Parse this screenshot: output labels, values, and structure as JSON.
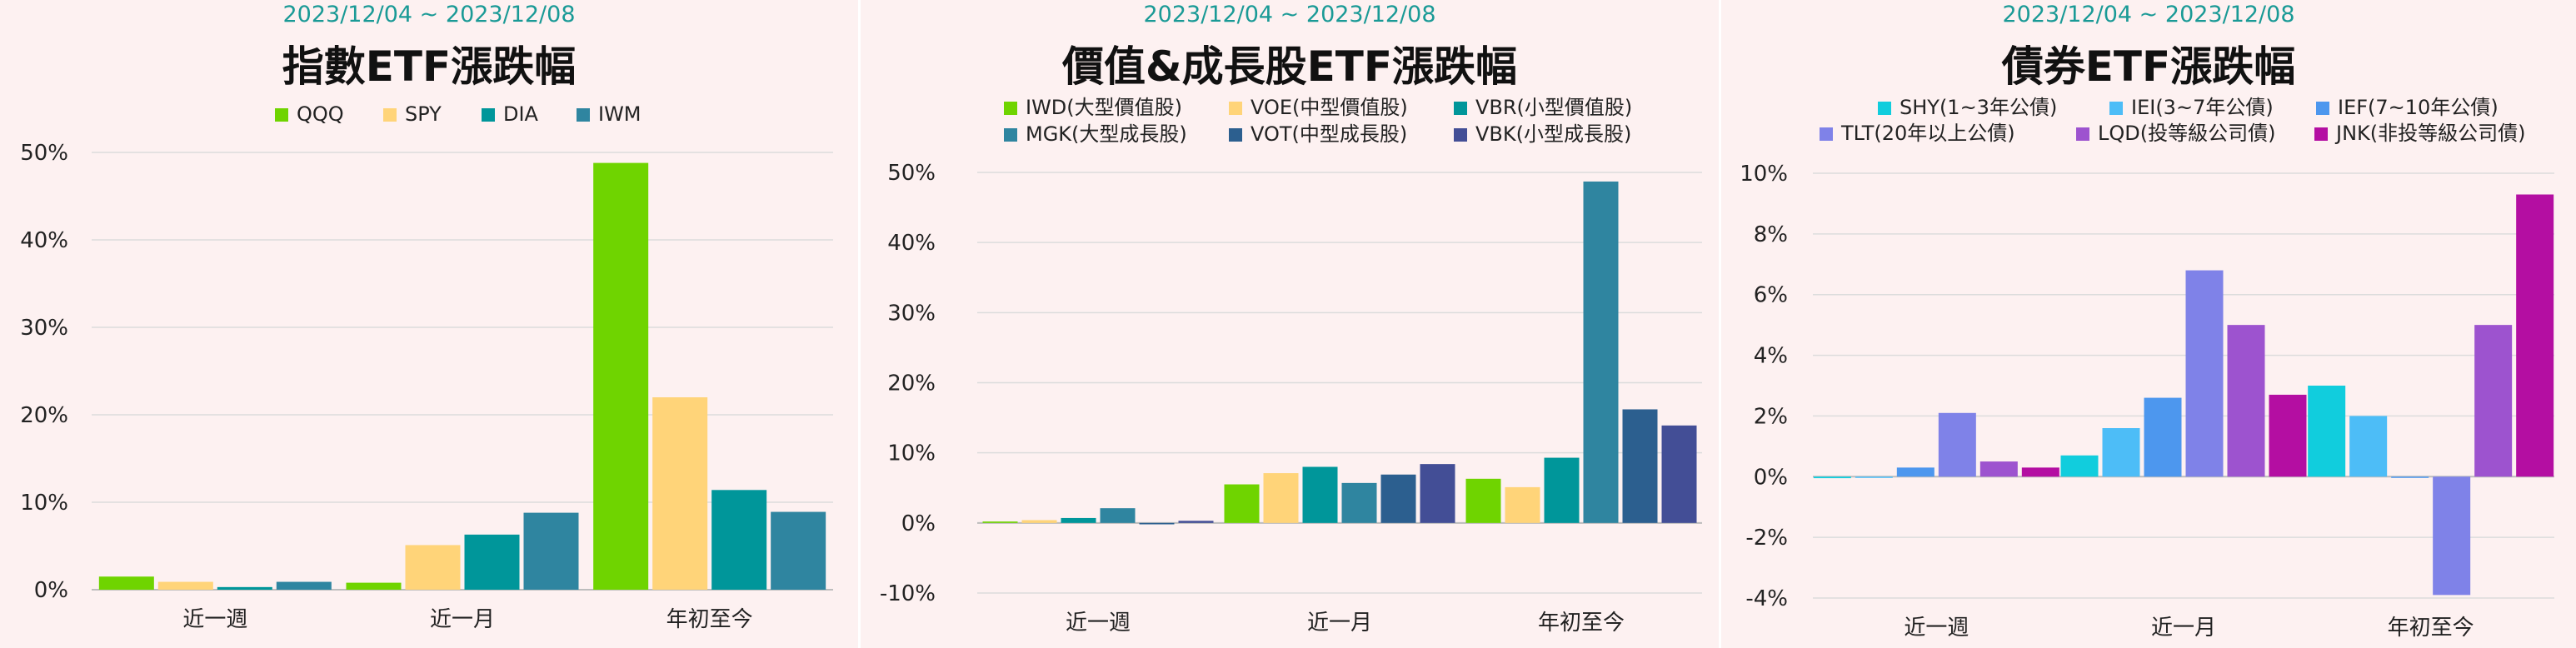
{
  "chart_data": [
    {
      "type": "bar",
      "date_range": "2023/12/04 ~ 2023/12/08",
      "title": "指數ETF漲跌幅",
      "categories": [
        "近一週",
        "近一月",
        "年初至今"
      ],
      "ylim": [
        0,
        50
      ],
      "yticks": [
        0,
        10,
        20,
        30,
        40,
        50
      ],
      "y_tick_labels": [
        "0%",
        "10%",
        "20%",
        "30%",
        "40%",
        "50%"
      ],
      "grid": true,
      "legend_position": "top",
      "series": [
        {
          "name": "QQQ",
          "color": "#6fd400",
          "values": [
            1.5,
            0.8,
            48.8
          ]
        },
        {
          "name": "SPY",
          "color": "#ffd479",
          "values": [
            0.9,
            5.1,
            22.0
          ]
        },
        {
          "name": "DIA",
          "color": "#00969a",
          "values": [
            0.3,
            6.3,
            11.4
          ]
        },
        {
          "name": "IWM",
          "color": "#2f85a0",
          "values": [
            0.9,
            8.8,
            8.9
          ]
        }
      ]
    },
    {
      "type": "bar",
      "date_range": "2023/12/04 ~ 2023/12/08",
      "title": "價值&成長股ETF漲跌幅",
      "categories": [
        "近一週",
        "近一月",
        "年初至今"
      ],
      "ylim": [
        -10,
        50
      ],
      "yticks": [
        -10,
        0,
        10,
        20,
        30,
        40,
        50
      ],
      "y_tick_labels": [
        "-10%",
        "0%",
        "10%",
        "20%",
        "30%",
        "40%",
        "50%"
      ],
      "grid": true,
      "legend_position": "top",
      "series": [
        {
          "name": "IWD(大型價值股)",
          "color": "#6fd400",
          "values": [
            0.2,
            5.5,
            6.3
          ]
        },
        {
          "name": "VOE(中型價值股)",
          "color": "#ffd479",
          "values": [
            0.4,
            7.1,
            5.1
          ]
        },
        {
          "name": "VBR(小型價值股)",
          "color": "#00969a",
          "values": [
            0.7,
            8.0,
            9.3
          ]
        },
        {
          "name": "MGK(大型成長股)",
          "color": "#2f85a0",
          "values": [
            2.1,
            5.7,
            48.7
          ]
        },
        {
          "name": "VOT(中型成長股)",
          "color": "#2c5f8f",
          "values": [
            -0.2,
            6.9,
            16.2
          ]
        },
        {
          "name": "VBK(小型成長股)",
          "color": "#434e96",
          "values": [
            0.3,
            8.4,
            13.9
          ]
        }
      ]
    },
    {
      "type": "bar",
      "date_range": "2023/12/04 ~ 2023/12/08",
      "title": "債券ETF漲跌幅",
      "categories": [
        "近一週",
        "近一月",
        "年初至今"
      ],
      "ylim": [
        -4,
        10
      ],
      "yticks": [
        -4,
        -2,
        0,
        2,
        4,
        6,
        8,
        10
      ],
      "y_tick_labels": [
        "-4%",
        "-2%",
        "0%",
        "2%",
        "4%",
        "6%",
        "8%",
        "10%"
      ],
      "grid": true,
      "legend_position": "top",
      "series": [
        {
          "name": "SHY(1~3年公債)",
          "color": "#11cddd",
          "values": [
            -0.05,
            0.7,
            3.0
          ]
        },
        {
          "name": "IEI(3~7年公債)",
          "color": "#4dbdf7",
          "values": [
            0.0,
            1.6,
            2.0
          ]
        },
        {
          "name": "IEF(7~10年公債)",
          "color": "#4d97ee",
          "values": [
            0.3,
            2.6,
            0.0
          ]
        },
        {
          "name": "TLT(20年以上公債)",
          "color": "#7f82e8",
          "values": [
            2.1,
            6.8,
            -3.9
          ]
        },
        {
          "name": "LQD(投等級公司債)",
          "color": "#9d53cf",
          "values": [
            0.5,
            5.0,
            5.0
          ]
        },
        {
          "name": "JNK(非投等級公司債)",
          "color": "#b40ea2",
          "values": [
            0.3,
            2.7,
            9.3
          ]
        }
      ]
    }
  ]
}
